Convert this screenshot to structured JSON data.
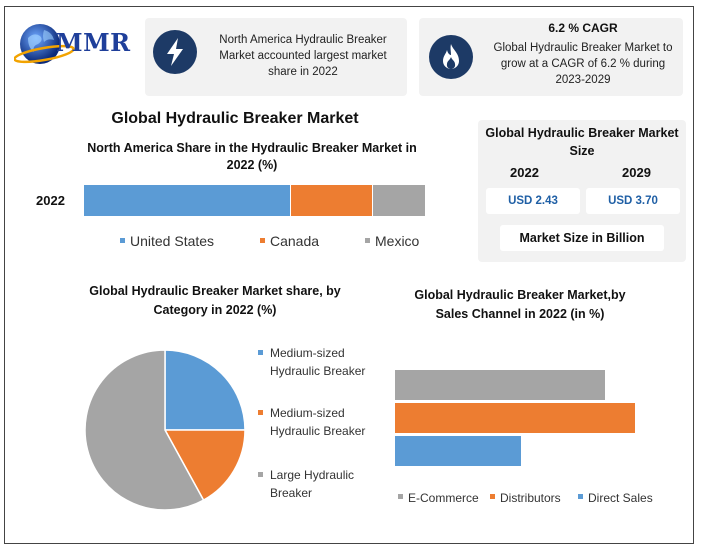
{
  "brand": {
    "name": "MMR"
  },
  "cards": {
    "share_text": "North America Hydraulic Breaker Market accounted largest market share in 2022",
    "cagr_title": "6.2 % CAGR",
    "cagr_text": "Global Hydraulic Breaker Market to grow at a CAGR of 6.2 % during 2023-2029"
  },
  "icons": {
    "card1": "lightning-bolt-icon",
    "card2": "flame-icon",
    "logo": "globe-icon"
  },
  "main_title": "Global Hydraulic Breaker Market",
  "market_size": {
    "title": "Global Hydraulic Breaker Market Size",
    "years": [
      "2022",
      "2029"
    ],
    "values": [
      "USD 2.43",
      "USD 3.70"
    ],
    "unit": "Market Size in Billion"
  },
  "colors": {
    "blue": "#5b9bd5",
    "orange": "#ed7d31",
    "gray": "#a5a5a5",
    "navy": "#1d3a66"
  },
  "chart_data": [
    {
      "type": "bar",
      "orientation": "horizontal-stacked",
      "title": "North America Share in the Hydraulic Breaker Market in 2022 (%)",
      "categories": [
        "2022"
      ],
      "series": [
        {
          "name": "United States",
          "values": [
            60.5
          ],
          "color": "#5b9bd5"
        },
        {
          "name": "Canada",
          "values": [
            24
          ],
          "color": "#ed7d31"
        },
        {
          "name": "Mexico",
          "values": [
            15.5
          ],
          "color": "#a5a5a5"
        }
      ],
      "legend": "bottom"
    },
    {
      "type": "pie",
      "title": "Global Hydraulic Breaker Market share, by Category in 2022 (%)",
      "slices": [
        {
          "label": "Medium-sized Hydraulic Breaker",
          "value": 25,
          "color": "#5b9bd5"
        },
        {
          "label": "Medium-sized Hydraulic Breaker",
          "value": 17,
          "color": "#ed7d31"
        },
        {
          "label": "Large Hydraulic Breaker",
          "value": 58,
          "color": "#a5a5a5"
        }
      ],
      "legend": "right"
    },
    {
      "type": "bar",
      "orientation": "horizontal",
      "title": "Global Hydraulic Breaker Market,by Sales Channel in 2022 (in %)",
      "categories": [
        "E-Commerce",
        "Distributors",
        "Direct Sales"
      ],
      "values": [
        35,
        40,
        21
      ],
      "colors": [
        "#a5a5a5",
        "#ed7d31",
        "#5b9bd5"
      ],
      "legend": "bottom"
    }
  ]
}
